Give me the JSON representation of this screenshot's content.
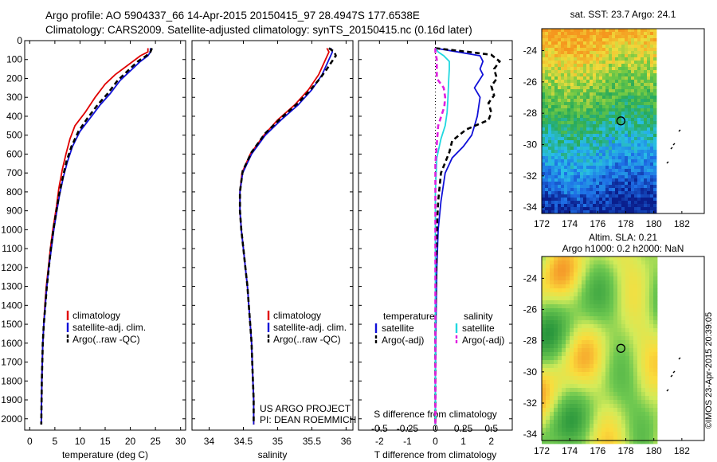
{
  "header": {
    "line1": "Argo profile: AO 5904337_66 14-Apr-2015 20150415_97 28.4947S 177.6538E",
    "line2": "Climatology: CARS2009. Satellite-adjusted climatology: synTS_20150415.nc (0.16d later)"
  },
  "credit": "©IMOS 23-Apr-2015 20:39:05",
  "colors": {
    "climatology": "#e00000",
    "satellite": "#1010d8",
    "argo": "#000000",
    "sal_satellite": "#20d8e0",
    "sal_argo": "#e020e0"
  },
  "chart_data": [
    {
      "type": "line",
      "panel": "temperature",
      "xlabel": "temperature (deg C)",
      "ylabel": "",
      "xlim": [
        -1,
        31
      ],
      "ylim": [
        2060,
        0
      ],
      "xticks": [
        "0",
        "5",
        "10",
        "15",
        "20",
        "25",
        "30"
      ],
      "xtick_values": [
        0,
        5,
        10,
        15,
        20,
        25,
        30
      ],
      "yticks": [
        "0",
        "100",
        "200",
        "300",
        "400",
        "500",
        "600",
        "700",
        "800",
        "900",
        "1000",
        "1100",
        "1200",
        "1300",
        "1400",
        "1500",
        "1600",
        "1700",
        "1800",
        "1900",
        "2000"
      ],
      "ytick_values": [
        0,
        100,
        200,
        300,
        400,
        500,
        600,
        700,
        800,
        900,
        1000,
        1100,
        1200,
        1300,
        1400,
        1500,
        1600,
        1700,
        1800,
        1900,
        2000
      ],
      "legend": [
        "climatology",
        "satellite-adj. clim.",
        "Argo(..raw -QC)"
      ],
      "legend_position": "lower-center",
      "series": [
        {
          "name": "climatology",
          "style": "solid",
          "color_key": "climatology",
          "x": [
            23.5,
            23.5,
            22,
            20,
            17,
            15,
            13,
            11,
            9,
            8,
            7.2,
            6.5,
            5.8,
            5.3,
            4.6,
            4.1,
            3.7,
            3.3,
            3.0,
            2.8,
            2.6,
            2.5,
            2.4,
            2.3
          ],
          "y": [
            40,
            60,
            80,
            120,
            180,
            230,
            300,
            380,
            450,
            520,
            600,
            680,
            780,
            880,
            1000,
            1100,
            1200,
            1300,
            1400,
            1500,
            1600,
            1700,
            1800,
            2030
          ]
        },
        {
          "name": "satellite-adj. clim.",
          "style": "solid",
          "color_key": "satellite",
          "x": [
            24,
            24,
            23.5,
            22,
            20,
            18,
            16,
            14,
            12,
            10,
            8.5,
            7.5,
            6.7,
            5.9,
            5.4,
            4.8,
            4.3,
            3.8,
            3.4,
            3.1,
            2.8,
            2.6,
            2.5,
            2.4,
            2.3
          ],
          "y": [
            40,
            60,
            80,
            110,
            160,
            210,
            280,
            340,
            410,
            480,
            560,
            640,
            720,
            820,
            900,
            1000,
            1100,
            1200,
            1300,
            1400,
            1500,
            1600,
            1700,
            1800,
            2030
          ]
        },
        {
          "name": "Argo(..raw -QC)",
          "style": "dashed",
          "color_key": "argo",
          "x": [
            24.3,
            24,
            23.2,
            21.5,
            19.5,
            17.5,
            15.5,
            13.5,
            11.5,
            9.7,
            8.3,
            7.3,
            6.6,
            5.8,
            5.3,
            4.7,
            4.2,
            3.8,
            3.4,
            3.1,
            2.8,
            2.6,
            2.5,
            2.4,
            2.3
          ],
          "y": [
            40,
            60,
            80,
            110,
            160,
            210,
            280,
            340,
            410,
            480,
            560,
            640,
            720,
            820,
            900,
            1000,
            1100,
            1200,
            1300,
            1400,
            1500,
            1600,
            1700,
            1800,
            2030
          ]
        }
      ]
    },
    {
      "type": "line",
      "panel": "salinity",
      "xlabel": "salinity",
      "ylabel": "",
      "xlim": [
        33.75,
        36.1
      ],
      "ylim": [
        2060,
        0
      ],
      "xticks": [
        "34",
        "34.5",
        "35",
        "35.5",
        "36"
      ],
      "xtick_values": [
        34,
        34.5,
        35,
        35.5,
        36
      ],
      "legend": [
        "climatology",
        "satellite-adj. clim.",
        "Argo(..raw -QC)"
      ],
      "legend_position": "lower-right",
      "annotation": [
        "US ARGO PROJECT",
        "PI: DEAN ROEMMICH"
      ],
      "series": [
        {
          "name": "climatology",
          "style": "solid",
          "color_key": "climatology",
          "x": [
            35.72,
            35.75,
            35.7,
            35.6,
            35.45,
            35.25,
            35.0,
            34.8,
            34.6,
            34.48,
            34.45,
            34.45,
            34.47,
            34.5,
            34.53,
            34.56,
            34.58,
            34.6,
            34.62,
            34.63,
            34.64,
            34.65,
            34.65
          ],
          "y": [
            40,
            60,
            100,
            180,
            260,
            340,
            420,
            500,
            600,
            700,
            800,
            900,
            1000,
            1100,
            1200,
            1300,
            1400,
            1500,
            1600,
            1700,
            1800,
            1900,
            2030
          ]
        },
        {
          "name": "satellite-adj. clim.",
          "style": "solid",
          "color_key": "satellite",
          "x": [
            35.78,
            35.8,
            35.75,
            35.65,
            35.5,
            35.3,
            35.05,
            34.82,
            34.62,
            34.49,
            34.45,
            34.45,
            34.47,
            34.5,
            34.53,
            34.56,
            34.58,
            34.6,
            34.62,
            34.63,
            34.64,
            34.65,
            34.65
          ],
          "y": [
            40,
            60,
            100,
            180,
            260,
            340,
            420,
            500,
            600,
            700,
            800,
            900,
            1000,
            1100,
            1200,
            1300,
            1400,
            1500,
            1600,
            1700,
            1800,
            1900,
            2030
          ]
        },
        {
          "name": "Argo(..raw -QC)",
          "style": "dashed",
          "color_key": "argo",
          "x": [
            35.75,
            35.83,
            35.85,
            35.72,
            35.62,
            35.48,
            35.3,
            35.05,
            34.82,
            34.62,
            34.49,
            34.45,
            34.45,
            34.47,
            34.5,
            34.53,
            34.56,
            34.58,
            34.6,
            34.62,
            34.63,
            34.64,
            34.65,
            34.65
          ],
          "y": [
            40,
            60,
            80,
            150,
            200,
            260,
            330,
            410,
            490,
            590,
            690,
            800,
            900,
            1000,
            1100,
            1200,
            1300,
            1400,
            1500,
            1600,
            1700,
            1800,
            1900,
            2030
          ]
        }
      ]
    },
    {
      "type": "line",
      "panel": "difference",
      "xlabel": "T difference from climatology",
      "xlabel_secondary": "S difference from climatology",
      "xlim": [
        -2.75,
        2.75
      ],
      "ylim": [
        2060,
        0
      ],
      "xticks": [
        "-2",
        "-1",
        "0",
        "1",
        "2"
      ],
      "xtick_values": [
        -2,
        -1,
        0,
        1,
        2
      ],
      "xticks_secondary": [
        "-0.5",
        "-0.25",
        "0",
        "0.25",
        "0.5"
      ],
      "legend_temperature_title": "temperature",
      "legend_salinity_title": "salinity",
      "legend": [
        "satellite",
        "Argo(-adj)",
        "satellite",
        "Argo(-adj)"
      ],
      "legend_position": "lower-center",
      "series": [
        {
          "name": "satellite",
          "group": "temperature",
          "style": "solid",
          "color_key": "satellite",
          "x": [
            0,
            0.8,
            1.6,
            1.7,
            1.6,
            1.7,
            1.4,
            1.6,
            1.5,
            1.3,
            1.0,
            0.6,
            0.35,
            0.2,
            0.1,
            0.05,
            0.02,
            0,
            0
          ],
          "y": [
            40,
            60,
            80,
            110,
            150,
            180,
            250,
            300,
            400,
            500,
            560,
            620,
            700,
            850,
            1000,
            1200,
            1500,
            1800,
            2030
          ]
        },
        {
          "name": "Argo(-adj)",
          "group": "temperature",
          "style": "dashed",
          "color_key": "argo",
          "x": [
            0,
            1.2,
            2.0,
            2.3,
            2.1,
            2.2,
            2.0,
            2.1,
            1.9,
            2.0,
            1.9,
            1.1,
            0.6,
            0.5,
            0.2,
            0.1,
            0.05,
            0,
            0
          ],
          "y": [
            40,
            60,
            75,
            110,
            150,
            200,
            240,
            290,
            330,
            380,
            420,
            470,
            530,
            590,
            700,
            850,
            1000,
            1500,
            2030
          ]
        },
        {
          "name": "satellite",
          "group": "salinity",
          "style": "solid",
          "color_key": "sal_satellite",
          "x": [
            0,
            0.1,
            0.3,
            0.5,
            0.5,
            0.48,
            0.45,
            0.42,
            0.35,
            0.2,
            0.05,
            0,
            0,
            0,
            0
          ],
          "y": [
            40,
            60,
            80,
            110,
            150,
            200,
            300,
            380,
            450,
            520,
            620,
            800,
            1200,
            1600,
            2030
          ]
        },
        {
          "name": "Argo(-adj)",
          "group": "salinity",
          "style": "dashed",
          "color_key": "sal_argo",
          "x": [
            0,
            0,
            0.05,
            0.05,
            0.3,
            0.35,
            0.32,
            0.1,
            0,
            0,
            0
          ],
          "y": [
            40,
            60,
            100,
            200,
            250,
            300,
            350,
            450,
            650,
            1200,
            2030
          ]
        }
      ]
    },
    {
      "type": "heatmap",
      "panel": "sst_map",
      "title": "sat. SST: 23.7 Argo: 24.1",
      "xlim": [
        172,
        183.6
      ],
      "ylim": [
        -34.4,
        -22.6
      ],
      "xticks": [
        "172",
        "174",
        "176",
        "178",
        "180",
        "182"
      ],
      "xtick_values": [
        172,
        174,
        176,
        178,
        180,
        182
      ],
      "yticks": [
        "-24",
        "-26",
        "-28",
        "-30",
        "-32",
        "-34"
      ],
      "ytick_values": [
        -24,
        -26,
        -28,
        -30,
        -32,
        -34
      ],
      "data_extent_lon": [
        172,
        180
      ],
      "marker": {
        "lon": 177.65,
        "lat": -28.49
      }
    },
    {
      "type": "heatmap",
      "panel": "sla_map",
      "title": "Altim. SLA: 0.21",
      "subtitle": "Argo h1000: 0.2 h2000: NaN",
      "xlim": [
        172,
        183.6
      ],
      "ylim": [
        -34.4,
        -22.6
      ],
      "xticks": [
        "172",
        "174",
        "176",
        "178",
        "180",
        "182"
      ],
      "xtick_values": [
        172,
        174,
        176,
        178,
        180,
        182
      ],
      "yticks": [
        "-24",
        "-26",
        "-28",
        "-30",
        "-32",
        "-34"
      ],
      "ytick_values": [
        -24,
        -26,
        -28,
        -30,
        -32,
        -34
      ],
      "data_extent_lon": [
        172,
        180
      ],
      "marker": {
        "lon": 177.65,
        "lat": -28.49
      }
    }
  ]
}
